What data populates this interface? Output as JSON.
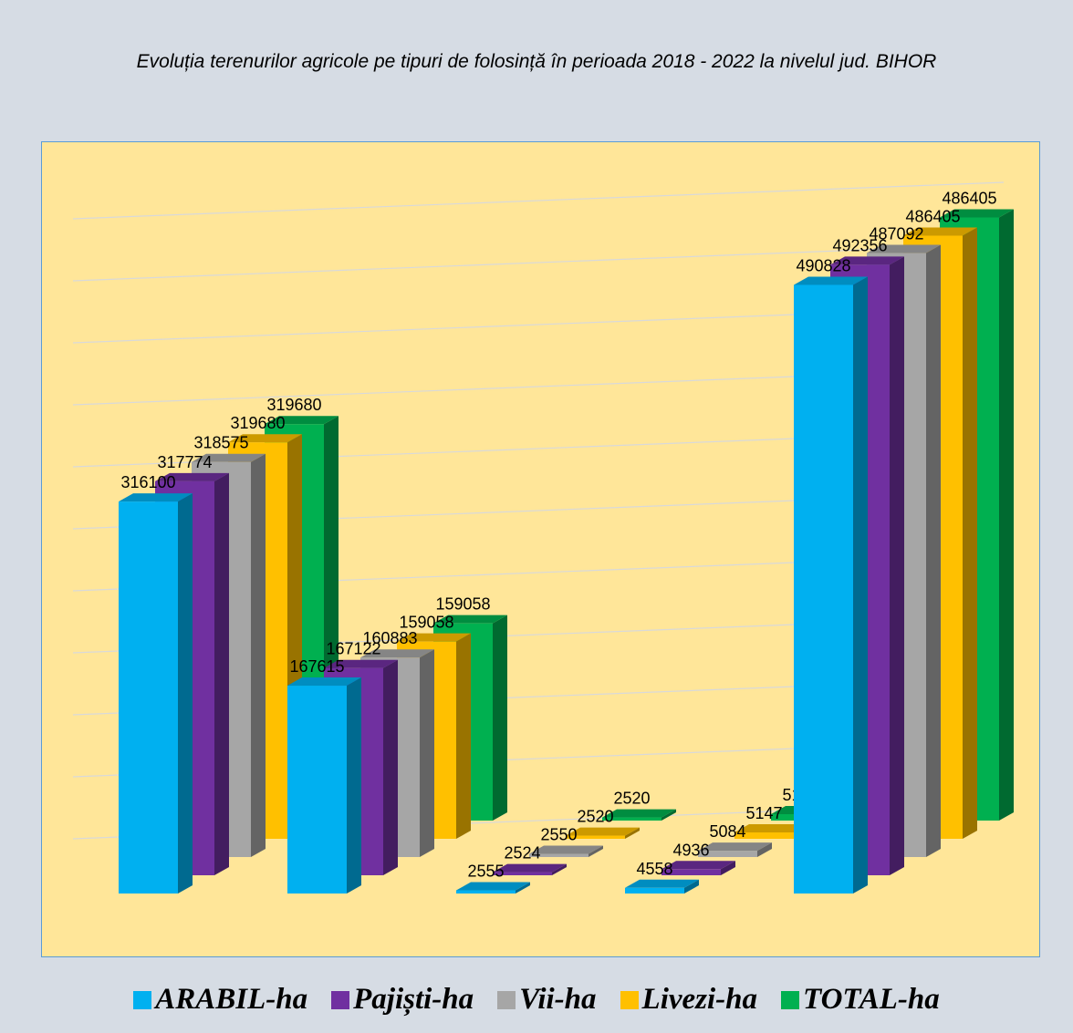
{
  "chart_data": {
    "type": "bar3d",
    "title": "Evoluția terenurilor agricole pe tipuri de folosință în perioada 2018 - 2022 la nivelul jud. BIHOR",
    "categories": [
      null,
      null,
      null,
      null,
      null
    ],
    "series": [
      {
        "name": "ARABIL-ha",
        "color": "#00b0f0",
        "values": [
          316100,
          167615,
          2555,
          4558,
          490828
        ]
      },
      {
        "name": "Pajiști-ha",
        "color": "#7030a0",
        "values": [
          317774,
          167122,
          2524,
          4936,
          492356
        ]
      },
      {
        "name": "Vii-ha",
        "color": "#a6a6a6",
        "values": [
          318575,
          160883,
          2550,
          5084,
          487092
        ]
      },
      {
        "name": "Livezi-ha",
        "color": "#ffc000",
        "values": [
          319680,
          159058,
          2520,
          5147,
          486405
        ]
      },
      {
        "name": "TOTAL-ha",
        "color": "#00b050",
        "values": [
          319680,
          159058,
          2520,
          5147,
          486405
        ]
      }
    ],
    "ylim": [
      0,
      500000
    ],
    "yticks": [
      0,
      50000,
      100000,
      150000,
      200000,
      250000,
      300000,
      350000,
      400000,
      450000,
      500000
    ],
    "grid": true
  }
}
